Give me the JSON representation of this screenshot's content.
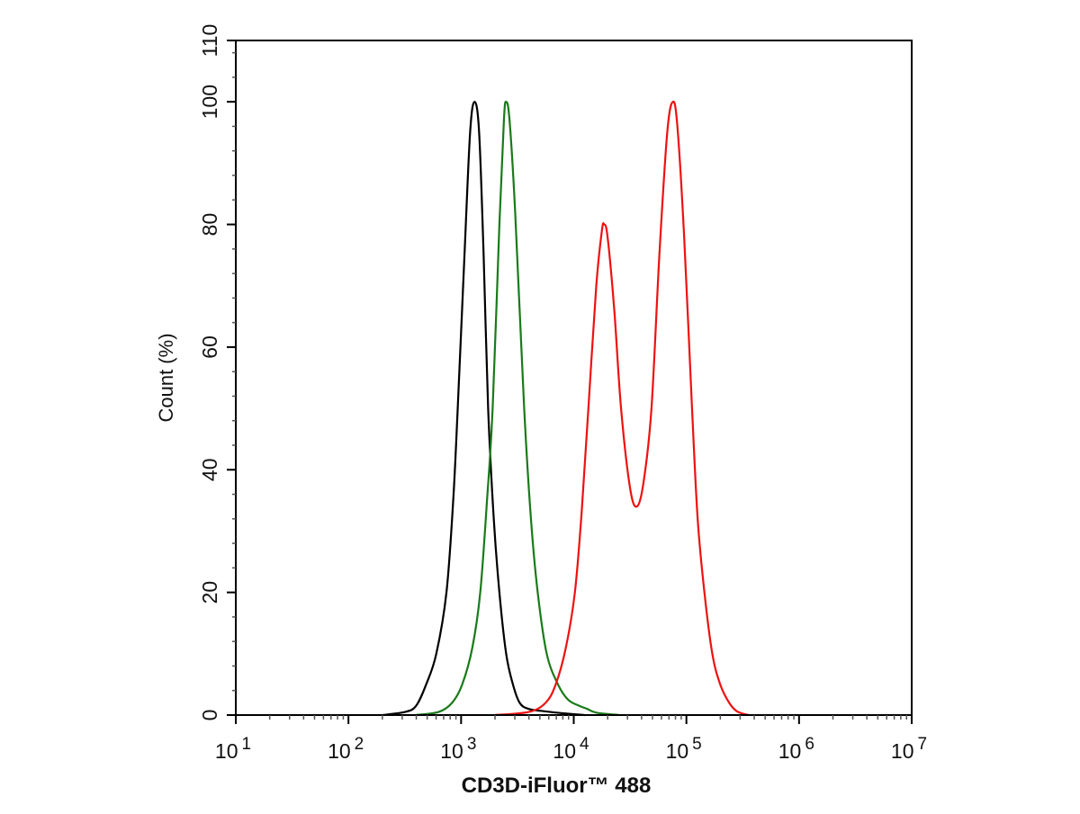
{
  "chart_data": {
    "type": "line",
    "title": "",
    "xlabel": "CD3D-iFluor™ 488",
    "ylabel": "Count  (%)",
    "xscale": "log",
    "xlim_log10": [
      1,
      7
    ],
    "ylim": [
      0,
      110
    ],
    "x_ticks": [
      {
        "base": "10",
        "exp": "1"
      },
      {
        "base": "10",
        "exp": "2"
      },
      {
        "base": "10",
        "exp": "3"
      },
      {
        "base": "10",
        "exp": "4"
      },
      {
        "base": "10",
        "exp": "5"
      },
      {
        "base": "10",
        "exp": "6"
      },
      {
        "base": "10",
        "exp": "7"
      }
    ],
    "y_ticks": [
      "0",
      "20",
      "40",
      "60",
      "80",
      "100",
      "110"
    ],
    "grid": false,
    "series": [
      {
        "name": "black",
        "color": "#000000",
        "log10_x": [
          2.3,
          2.5,
          2.6,
          2.69,
          2.78,
          2.87,
          2.93,
          2.97,
          3.03,
          3.08,
          3.12,
          3.16,
          3.2,
          3.24,
          3.29,
          3.34,
          3.4,
          3.46,
          3.52,
          3.6,
          3.75,
          3.9,
          4.1
        ],
        "y": [
          0,
          0.5,
          1.5,
          5,
          10,
          20,
          35,
          50,
          75,
          95,
          100,
          95,
          75,
          50,
          32,
          20,
          10,
          5,
          2,
          1,
          0.6,
          0.3,
          0
        ]
      },
      {
        "name": "green",
        "color": "#1a7a1a",
        "log10_x": [
          2.6,
          2.8,
          2.92,
          3.01,
          3.1,
          3.17,
          3.23,
          3.28,
          3.34,
          3.38,
          3.4,
          3.43,
          3.48,
          3.56,
          3.62,
          3.68,
          3.76,
          3.86,
          3.95,
          4.05,
          4.12,
          4.2,
          4.4
        ],
        "y": [
          0,
          0.5,
          2,
          5,
          11,
          20,
          35,
          50,
          80,
          97,
          100,
          97,
          82,
          50,
          32,
          20,
          10,
          5,
          2.5,
          1.5,
          1,
          0.4,
          0
        ]
      },
      {
        "name": "red",
        "color": "#ee1111",
        "log10_x": [
          3.3,
          3.6,
          3.75,
          3.84,
          3.93,
          4.01,
          4.07,
          4.13,
          4.2,
          4.25,
          4.27,
          4.3,
          4.36,
          4.42,
          4.5,
          4.56,
          4.62,
          4.69,
          4.76,
          4.83,
          4.88,
          4.92,
          4.98,
          5.05,
          5.1,
          5.16,
          5.23,
          5.3,
          5.38,
          5.45,
          5.55
        ],
        "y": [
          0,
          0.5,
          2,
          5,
          11,
          20,
          33,
          50,
          70,
          79,
          80,
          78,
          66,
          50,
          37,
          34,
          38,
          50,
          75,
          95,
          100,
          96,
          78,
          50,
          32,
          20,
          10,
          5,
          2,
          0.6,
          0
        ]
      }
    ]
  }
}
